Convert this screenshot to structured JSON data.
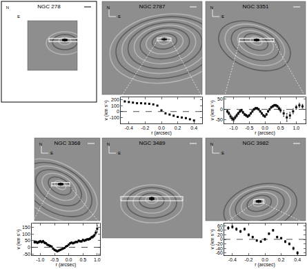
{
  "chart_data": [
    {
      "type": "image",
      "title": "NGC 278",
      "compass": [
        "N",
        "E"
      ]
    },
    {
      "type": "scatter",
      "title": "NGC 2787",
      "compass": [
        "N",
        "E"
      ],
      "marker": "square",
      "xlabel": "r (arcsec)",
      "ylabel": "v (km s⁻¹)",
      "x": [
        -0.45,
        -0.4,
        -0.35,
        -0.3,
        -0.25,
        -0.2,
        -0.15,
        -0.1,
        -0.05,
        0.0,
        0.05,
        0.1,
        0.15,
        0.2,
        0.25,
        0.3,
        0.35,
        0.4
      ],
      "values": [
        170,
        160,
        150,
        140,
        140,
        135,
        130,
        120,
        100,
        20,
        -30,
        -50,
        -70,
        -90,
        -100,
        -110,
        -130,
        -150
      ],
      "zero_line": 0,
      "xlim": [
        -0.5,
        0.5
      ],
      "ylim": [
        -200,
        240
      ],
      "xticks": [
        {
          "value": -0.4,
          "label": "-0.4"
        },
        {
          "value": -0.2,
          "label": "-0.2"
        },
        {
          "value": 0,
          "label": "0.0"
        },
        {
          "value": 0.2,
          "label": "0.2"
        },
        {
          "value": 0.4,
          "label": "0.4"
        }
      ],
      "yticks": [
        -100,
        0,
        100,
        200
      ]
    },
    {
      "type": "scatter",
      "title": "NGC 3351",
      "compass": [
        "N",
        "E"
      ],
      "marker": "square",
      "xlabel": "r (arcsec)",
      "ylabel": "v (km s⁻¹)",
      "x": [
        -1.2,
        -1.15,
        -1.1,
        -1.05,
        -1.0,
        -0.95,
        -0.9,
        -0.85,
        -0.8,
        -0.75,
        -0.7,
        -0.65,
        -0.6,
        -0.55,
        -0.5,
        -0.45,
        -0.4,
        -0.35,
        -0.3,
        -0.25,
        -0.2,
        -0.15,
        -0.1,
        -0.05,
        0.0,
        0.05,
        0.1,
        0.15,
        0.2,
        0.25,
        0.3,
        0.35,
        0.4,
        0.45,
        0.5,
        0.6,
        0.7,
        0.8,
        0.9,
        1.0,
        1.1,
        1.2
      ],
      "values": [
        -10,
        -20,
        -35,
        -45,
        -50,
        -40,
        -30,
        -20,
        -10,
        -5,
        -15,
        -25,
        -30,
        -35,
        -30,
        -20,
        -10,
        0,
        5,
        5,
        0,
        -10,
        -20,
        -30,
        -35,
        -25,
        -10,
        0,
        10,
        15,
        20,
        20,
        15,
        5,
        -5,
        -20,
        -40,
        -30,
        -10,
        10,
        20,
        15
      ],
      "errors": [
        8,
        8,
        10,
        10,
        10,
        8,
        8,
        6,
        6,
        6,
        6,
        6,
        6,
        6,
        5,
        5,
        5,
        5,
        5,
        5,
        5,
        5,
        5,
        5,
        5,
        5,
        5,
        5,
        5,
        5,
        5,
        5,
        6,
        8,
        10,
        15,
        20,
        15,
        12,
        10,
        10,
        10
      ],
      "zero_line": 0,
      "xlim": [
        -1.3,
        1.3
      ],
      "ylim": [
        -70,
        60
      ],
      "xticks": [
        {
          "value": -1.0,
          "label": "-1.0"
        },
        {
          "value": -0.5,
          "label": "-0.5"
        },
        {
          "value": 0,
          "label": "0.0"
        },
        {
          "value": 0.5,
          "label": "0.5"
        },
        {
          "value": 1.0,
          "label": "1.0"
        }
      ],
      "yticks": [
        -50,
        0,
        50
      ]
    },
    {
      "type": "scatter",
      "title": "NGC 3368",
      "compass": [
        "N",
        "E"
      ],
      "marker": "square",
      "xlabel": "r (arcsec)",
      "ylabel": "v (km s⁻¹)",
      "x": [
        -1.2,
        -1.15,
        -1.1,
        -1.05,
        -1.0,
        -0.95,
        -0.9,
        -0.85,
        -0.8,
        -0.75,
        -0.7,
        -0.65,
        -0.6,
        -0.55,
        -0.5,
        -0.45,
        -0.4,
        -0.35,
        -0.3,
        -0.25,
        -0.2,
        -0.15,
        -0.1,
        -0.05,
        0.0,
        0.05,
        0.1,
        0.15,
        0.2,
        0.25,
        0.3,
        0.35,
        0.4,
        0.45,
        0.5,
        0.55,
        0.6,
        0.65,
        0.7,
        0.75,
        0.8,
        0.85,
        0.9,
        0.95,
        1.0
      ],
      "values": [
        40,
        40,
        35,
        40,
        45,
        40,
        45,
        35,
        30,
        20,
        15,
        10,
        5,
        -10,
        -20,
        -25,
        -30,
        -25,
        -20,
        -15,
        -10,
        -5,
        5,
        10,
        20,
        30,
        35,
        30,
        35,
        40,
        40,
        50,
        45,
        45,
        55,
        50,
        55,
        60,
        60,
        65,
        75,
        80,
        90,
        110,
        140
      ],
      "errors": [
        10,
        8,
        8,
        8,
        8,
        8,
        8,
        8,
        6,
        6,
        6,
        6,
        6,
        6,
        6,
        6,
        6,
        6,
        5,
        5,
        5,
        5,
        5,
        5,
        5,
        5,
        5,
        5,
        5,
        5,
        5,
        5,
        5,
        6,
        6,
        6,
        6,
        6,
        8,
        8,
        8,
        10,
        10,
        15,
        25
      ],
      "zero_line": 0,
      "xlim": [
        -1.3,
        1.1
      ],
      "ylim": [
        -60,
        180
      ],
      "xticks": [
        {
          "value": -1.0,
          "label": "-1.0"
        },
        {
          "value": -0.5,
          "label": "-0.5"
        },
        {
          "value": 0,
          "label": "0.0"
        },
        {
          "value": 0.5,
          "label": "0.5"
        },
        {
          "value": 1.0,
          "label": "1.0"
        }
      ],
      "yticks": [
        -50,
        0,
        50,
        100,
        150
      ]
    },
    {
      "type": "image",
      "title": "NGC 3489",
      "compass": [
        "N",
        "E"
      ]
    },
    {
      "type": "scatter",
      "title": "NGC 3982",
      "compass": [
        "N",
        "E"
      ],
      "marker": "square",
      "xlabel": "r (arcsec)",
      "ylabel": "v (km s⁻¹)",
      "x": [
        -0.45,
        -0.4,
        -0.35,
        -0.3,
        -0.25,
        -0.2,
        -0.15,
        -0.1,
        -0.05,
        0.0,
        0.05,
        0.1,
        0.15,
        0.2,
        0.25,
        0.3,
        0.35,
        0.4
      ],
      "values": [
        50,
        55,
        45,
        35,
        45,
        20,
        10,
        -5,
        -10,
        0,
        25,
        40,
        10,
        5,
        -10,
        -20,
        -40,
        -60
      ],
      "errors": [
        6,
        6,
        6,
        5,
        5,
        5,
        4,
        4,
        4,
        4,
        4,
        4,
        4,
        4,
        5,
        5,
        6,
        6
      ],
      "zero_line": 0,
      "xlim": [
        -0.5,
        0.5
      ],
      "ylim": [
        -70,
        70
      ],
      "xticks": [
        {
          "value": -0.4,
          "label": "-0.4"
        },
        {
          "value": -0.2,
          "label": "-0.2"
        },
        {
          "value": 0,
          "label": "0.0"
        },
        {
          "value": 0.2,
          "label": "0.2"
        },
        {
          "value": 0.4,
          "label": "0.4"
        }
      ],
      "yticks": [
        -60,
        -40,
        -20,
        0,
        20,
        40,
        60
      ]
    }
  ]
}
